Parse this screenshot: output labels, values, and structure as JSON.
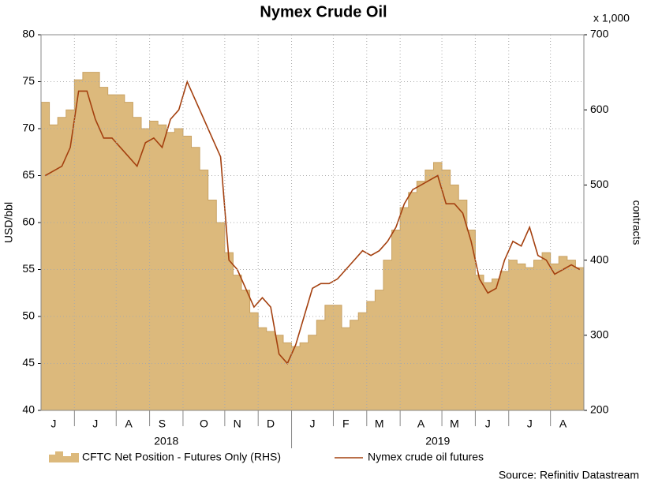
{
  "chart_data": {
    "type": "line",
    "title": "Nymex Crude Oil",
    "ylabel": "USD/bbl",
    "y2label": "contracts",
    "y2_multiplier": "x 1,000",
    "source": "Source: Refinitiv Datastream",
    "years": [
      "2018",
      "2019"
    ],
    "categories": [
      null,
      "J",
      null,
      null,
      null,
      null,
      "J",
      null,
      null,
      null,
      "A",
      null,
      null,
      null,
      "S",
      null,
      null,
      null,
      null,
      "O",
      null,
      null,
      null,
      "N",
      null,
      null,
      null,
      "D",
      null,
      null,
      null,
      null,
      "J",
      null,
      null,
      null,
      "F",
      null,
      null,
      null,
      "M",
      null,
      null,
      null,
      null,
      "A",
      null,
      null,
      null,
      "M",
      null,
      null,
      null,
      "J",
      null,
      null,
      null,
      null,
      "J",
      null,
      null,
      null,
      "A",
      null,
      null
    ],
    "ylim": [
      40,
      80
    ],
    "yticks": [
      40,
      45,
      50,
      55,
      60,
      65,
      70,
      75,
      80
    ],
    "y2lim": [
      200,
      700
    ],
    "y2ticks": [
      200,
      300,
      400,
      500,
      600,
      700
    ],
    "grid": true,
    "series": [
      {
        "name": "CFTC Net Position - Futures Only (RHS)",
        "color": "#dcb97c",
        "axis": "y2",
        "style": "step-area",
        "values": [
          610,
          580,
          590,
          600,
          640,
          650,
          650,
          630,
          620,
          620,
          610,
          590,
          575,
          585,
          580,
          570,
          575,
          565,
          550,
          520,
          480,
          450,
          410,
          380,
          360,
          330,
          310,
          305,
          300,
          290,
          285,
          290,
          300,
          320,
          340,
          340,
          310,
          320,
          330,
          345,
          360,
          400,
          440,
          470,
          490,
          505,
          520,
          530,
          520,
          500,
          480,
          440,
          380,
          370,
          375,
          385,
          400,
          395,
          390,
          400,
          410,
          395,
          405,
          400,
          390
        ]
      },
      {
        "name": "Nymex crude oil futures",
        "color": "#a4400f",
        "axis": "y",
        "style": "line",
        "values": [
          65,
          65.5,
          66,
          68,
          74,
          74,
          71,
          69,
          69,
          68,
          67,
          66,
          68.5,
          69,
          68,
          71,
          72,
          75,
          73,
          71,
          69,
          67,
          56,
          55,
          53,
          51,
          52,
          51,
          46,
          45,
          47,
          50,
          53,
          53.5,
          53.5,
          54,
          55,
          56,
          57,
          56.5,
          57,
          58,
          59.5,
          62,
          63.5,
          64,
          64.5,
          65,
          62,
          62,
          61,
          58,
          54,
          52.5,
          53,
          56,
          58,
          57.5,
          59.5,
          56.5,
          56,
          54.5,
          55,
          55.5,
          55
        ]
      }
    ]
  }
}
